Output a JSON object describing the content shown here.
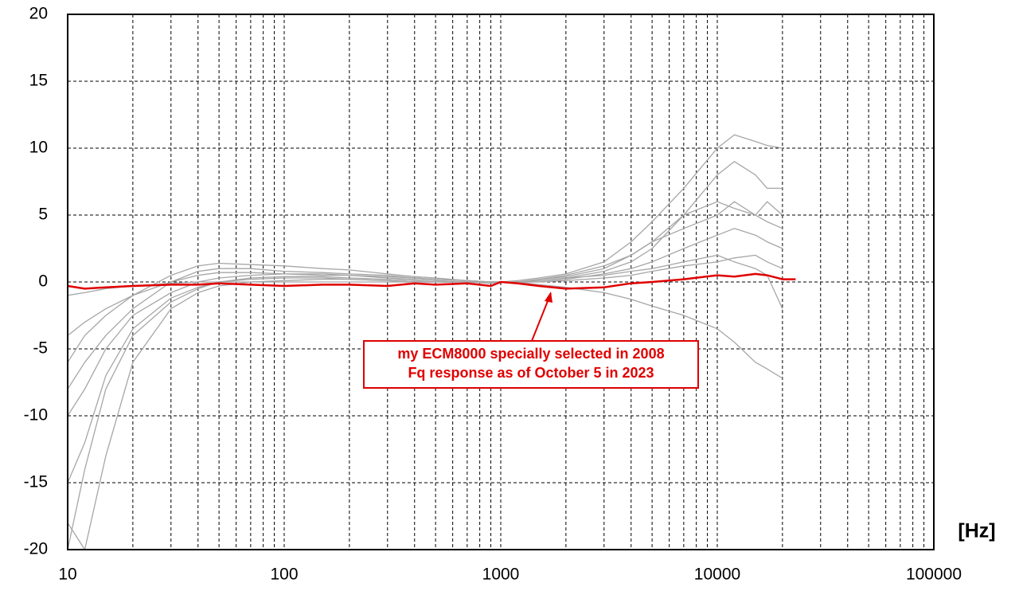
{
  "chart_data": {
    "type": "line",
    "x_label": "[Hz]",
    "log_x": true,
    "grid": true,
    "xlim": [
      10,
      100000
    ],
    "xticks": [
      10,
      100,
      1000,
      10000,
      100000
    ],
    "ylim": [
      -20,
      20
    ],
    "yticks": [
      20,
      15,
      10,
      5,
      0,
      -5,
      -10,
      -15,
      -20
    ],
    "annotations": [
      "my ECM8000 specially selected in 2008",
      "Fq response as of October 5 in 2023"
    ],
    "x": [
      10,
      12,
      15,
      20,
      30,
      40,
      50,
      70,
      100,
      150,
      200,
      300,
      400,
      500,
      700,
      900,
      1000,
      1200,
      1500,
      2000,
      3000,
      4000,
      5000,
      7000,
      10000,
      12000,
      15000,
      17000,
      20000,
      23000
    ],
    "series": [
      {
        "color": "#a6a6a6",
        "values": [
          -20,
          -14,
          -8,
          -4,
          -1.5,
          -0.5,
          0,
          0.3,
          0.4,
          0.4,
          0.3,
          0.2,
          0.1,
          0,
          0,
          -0.1,
          0,
          0,
          0.1,
          0.3,
          0.8,
          1.5,
          2.5,
          5,
          8,
          9,
          8,
          7,
          7,
          null
        ]
      },
      {
        "color": "#a6a6a6",
        "values": [
          -6,
          -4,
          -2.5,
          -1,
          0.5,
          1.2,
          1.4,
          1.3,
          1.2,
          1,
          0.9,
          0.6,
          0.4,
          0.3,
          0.1,
          0,
          0,
          0,
          0.2,
          0.4,
          1,
          2,
          3,
          5,
          6,
          5.5,
          5,
          6,
          5,
          null
        ]
      },
      {
        "color": "#a6a6a6",
        "values": [
          -10,
          -8,
          -5,
          -2.5,
          -0.8,
          0,
          0.3,
          0.5,
          0.6,
          0.6,
          0.5,
          0.4,
          0.3,
          0.2,
          0.1,
          0,
          0,
          0,
          0,
          0.2,
          0.6,
          1,
          1.5,
          2.5,
          3.5,
          4,
          3.5,
          3,
          2.5,
          null
        ]
      },
      {
        "color": "#a6a6a6",
        "values": [
          -1,
          -0.8,
          -0.5,
          -0.3,
          -0.1,
          0,
          0,
          0,
          0,
          0,
          0,
          0,
          0,
          0,
          0,
          0,
          0,
          0,
          -0.2,
          -0.4,
          -0.8,
          -1.3,
          -1.8,
          -2.5,
          -3.5,
          -4.5,
          -6,
          -6.5,
          -7.2,
          null
        ]
      },
      {
        "color": "#a6a6a6",
        "values": [
          -15,
          -12,
          -7,
          -3.5,
          -1.2,
          -0.4,
          0,
          0.2,
          0.3,
          0.3,
          0.2,
          0.1,
          0,
          0,
          0,
          0,
          0,
          0.1,
          0.3,
          0.6,
          1.5,
          3,
          4.5,
          7,
          10,
          11,
          10.5,
          10.2,
          10,
          null
        ]
      },
      {
        "color": "#a6a6a6",
        "values": [
          -8,
          -6,
          -4,
          -2,
          0,
          0.8,
          1,
          1,
          0.8,
          0.7,
          0.6,
          0.5,
          0.3,
          0.2,
          0.1,
          0,
          0,
          0,
          0.1,
          0.3,
          0.5,
          0.8,
          1,
          1.5,
          2,
          1.5,
          1,
          0.5,
          -2,
          null
        ]
      },
      {
        "color": "#a6a6a6",
        "values": [
          -18,
          -20,
          -13,
          -6,
          -2,
          -0.8,
          -0.3,
          0,
          0.1,
          0.2,
          0.2,
          0.1,
          0,
          0,
          0,
          0,
          0,
          0,
          0.2,
          0.5,
          1.2,
          2,
          3,
          4,
          5,
          6,
          5,
          4.5,
          4,
          null
        ]
      },
      {
        "color": "#a6a6a6",
        "values": [
          -4,
          -3,
          -2,
          -1,
          0,
          0.5,
          0.7,
          0.7,
          0.6,
          0.5,
          0.5,
          0.3,
          0.2,
          0.1,
          0,
          0,
          0,
          0,
          0,
          0.1,
          0.3,
          0.5,
          0.8,
          1.2,
          1.5,
          1.8,
          2,
          1.5,
          1,
          null
        ]
      },
      {
        "color": "#e00000",
        "values": [
          -0.3,
          -0.5,
          -0.4,
          -0.3,
          -0.2,
          -0.2,
          -0.1,
          -0.2,
          -0.3,
          -0.2,
          -0.2,
          -0.3,
          -0.1,
          -0.2,
          -0.1,
          -0.3,
          0,
          -0.1,
          -0.3,
          -0.5,
          -0.4,
          -0.1,
          0,
          0.2,
          0.5,
          0.4,
          0.6,
          0.5,
          0.2,
          0.2
        ]
      }
    ]
  }
}
